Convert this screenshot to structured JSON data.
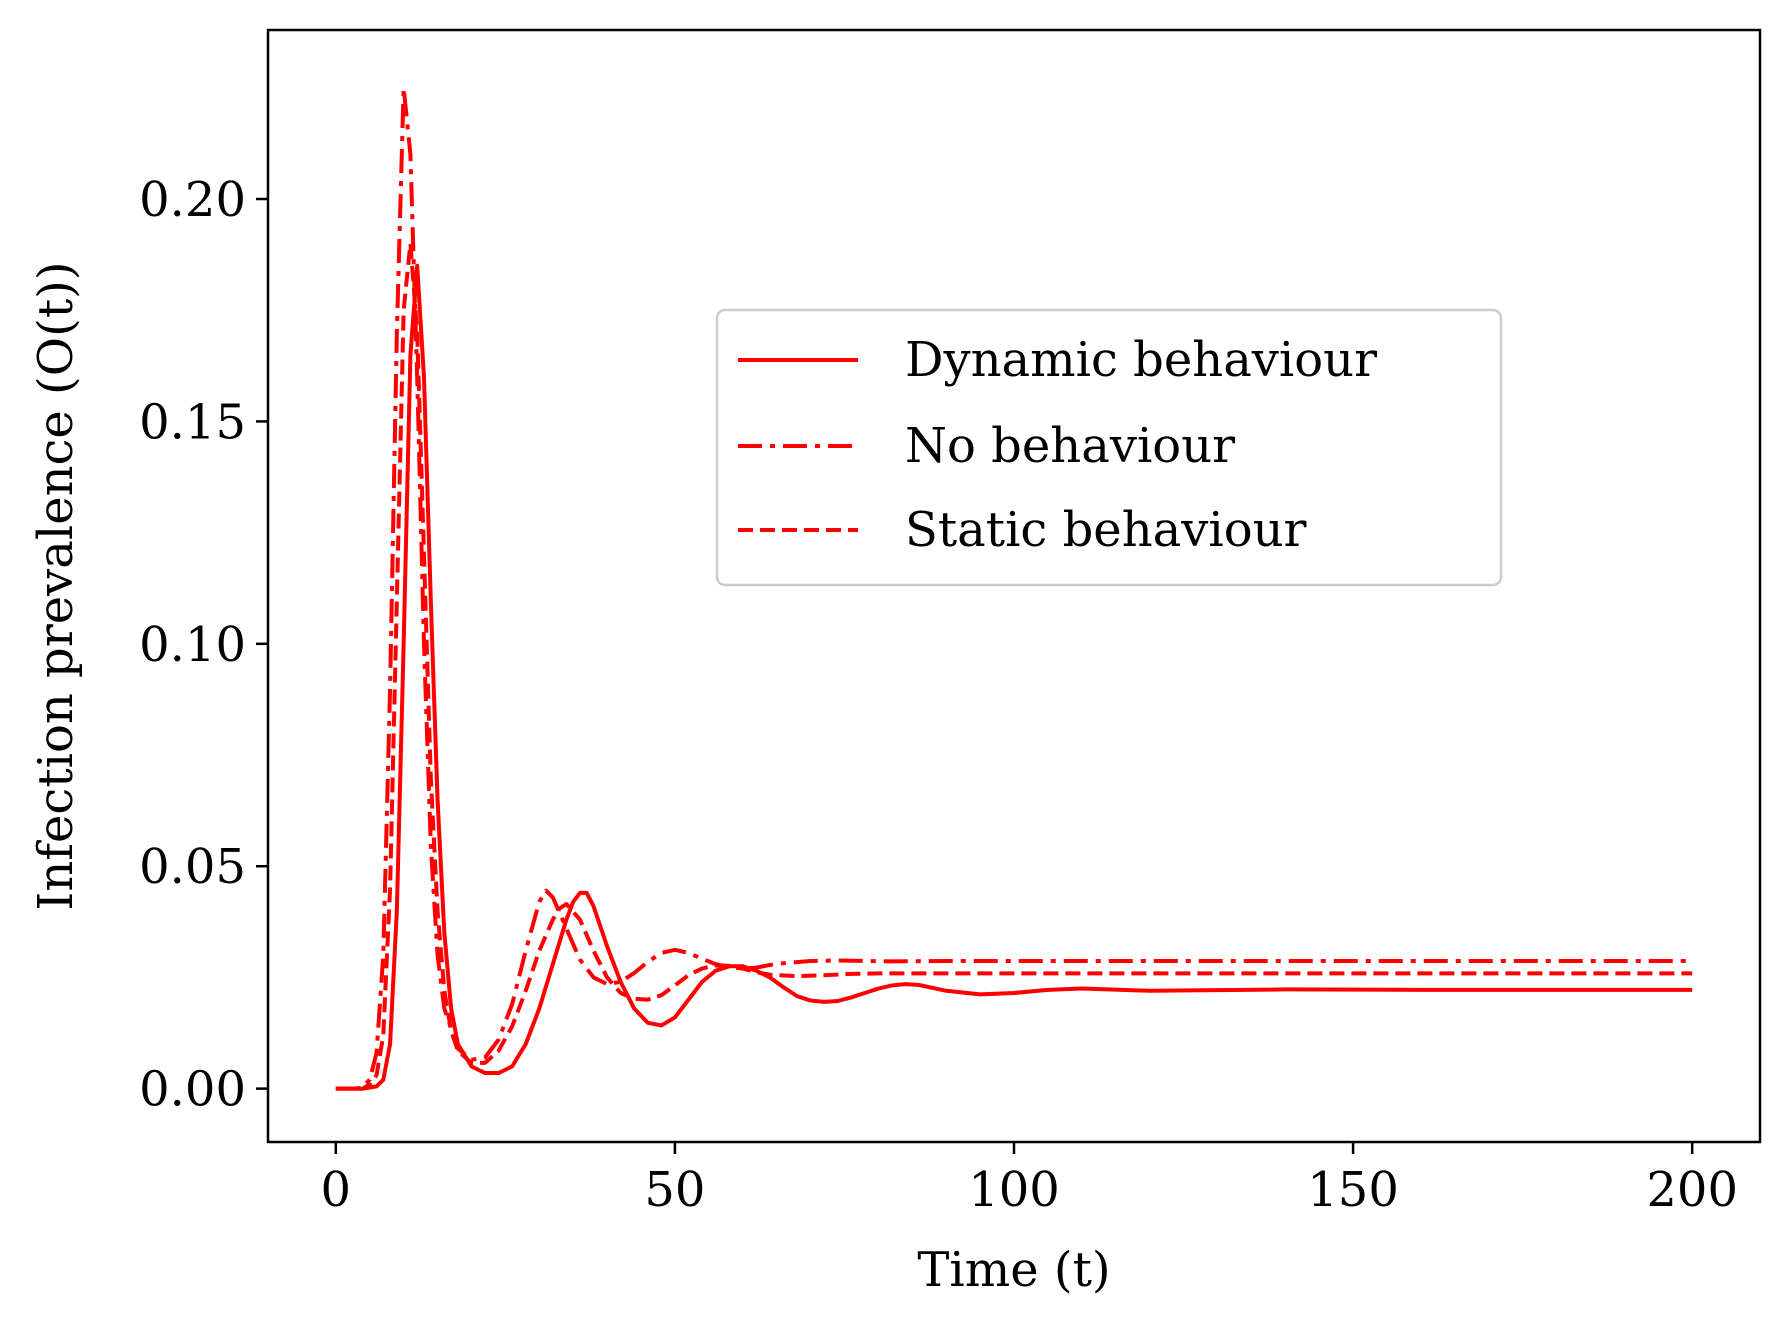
{
  "colors": {
    "series": "#ff0000",
    "axis": "#000000",
    "legend_border": "#cccccc",
    "background": "#ffffff"
  },
  "chart_data": {
    "type": "line",
    "title": "",
    "xlabel": "Time (t)",
    "ylabel": "Infection prevalence (O(t))",
    "xlim": [
      -10,
      210
    ],
    "ylim": [
      -0.012,
      0.238
    ],
    "grid": false,
    "legend_position": "center-right",
    "x_ticks": [
      0,
      50,
      100,
      150,
      200
    ],
    "x_tick_labels": [
      "0",
      "50",
      "100",
      "150",
      "200"
    ],
    "y_ticks": [
      0.0,
      0.05,
      0.1,
      0.15,
      0.2
    ],
    "y_tick_labels": [
      "0.00",
      "0.05",
      "0.10",
      "0.15",
      "0.20"
    ],
    "series": [
      {
        "name": "Dynamic behaviour",
        "style": "solid",
        "x": [
          0,
          4,
          6,
          7,
          8,
          9,
          10,
          11,
          12,
          13,
          14,
          15,
          16,
          17,
          18,
          20,
          22,
          24,
          26,
          28,
          30,
          32,
          34,
          35,
          36,
          37,
          38,
          40,
          42,
          44,
          46,
          48,
          50,
          52,
          54,
          56,
          58,
          60,
          62,
          64,
          66,
          68,
          70,
          72,
          74,
          76,
          78,
          80,
          82,
          84,
          86,
          90,
          95,
          100,
          105,
          110,
          120,
          140,
          160,
          180,
          200
        ],
        "y": [
          0.0,
          0.0,
          0.0005,
          0.002,
          0.01,
          0.04,
          0.1,
          0.165,
          0.185,
          0.16,
          0.11,
          0.065,
          0.035,
          0.018,
          0.01,
          0.005,
          0.0035,
          0.0035,
          0.005,
          0.01,
          0.018,
          0.028,
          0.038,
          0.042,
          0.044,
          0.044,
          0.041,
          0.032,
          0.024,
          0.018,
          0.0148,
          0.0142,
          0.016,
          0.02,
          0.024,
          0.0265,
          0.0275,
          0.0275,
          0.0265,
          0.025,
          0.0228,
          0.0208,
          0.0198,
          0.0195,
          0.0197,
          0.0205,
          0.0215,
          0.0225,
          0.0232,
          0.0235,
          0.0233,
          0.022,
          0.0212,
          0.0215,
          0.0222,
          0.0225,
          0.022,
          0.0223,
          0.0222,
          0.0222,
          0.0222
        ]
      },
      {
        "name": "No behaviour",
        "style": "dashdot",
        "x": [
          0,
          3,
          4,
          5,
          6,
          7,
          8,
          9,
          10,
          11,
          12,
          13,
          14,
          15,
          16,
          18,
          20,
          22,
          24,
          26,
          28,
          30,
          31,
          32,
          34,
          36,
          38,
          40,
          42,
          44,
          46,
          48,
          50,
          52,
          54,
          56,
          58,
          60,
          62,
          64,
          66,
          70,
          74,
          78,
          82,
          90,
          100,
          120,
          150,
          200
        ],
        "y": [
          0.0,
          0.0,
          0.0005,
          0.002,
          0.008,
          0.03,
          0.09,
          0.17,
          0.225,
          0.21,
          0.16,
          0.1,
          0.055,
          0.03,
          0.018,
          0.009,
          0.0065,
          0.007,
          0.011,
          0.019,
          0.031,
          0.042,
          0.0445,
          0.043,
          0.036,
          0.029,
          0.025,
          0.0235,
          0.024,
          0.026,
          0.0285,
          0.0305,
          0.0312,
          0.0305,
          0.0292,
          0.028,
          0.0273,
          0.027,
          0.0272,
          0.0278,
          0.0282,
          0.0287,
          0.0288,
          0.0287,
          0.0286,
          0.0287,
          0.0287,
          0.0287,
          0.0287,
          0.0287
        ]
      },
      {
        "name": "Static behaviour",
        "style": "dashed",
        "x": [
          0,
          4,
          5,
          6,
          7,
          8,
          9,
          10,
          11,
          12,
          13,
          14,
          15,
          16,
          17,
          18,
          20,
          22,
          24,
          26,
          28,
          30,
          32,
          33,
          34,
          36,
          38,
          40,
          42,
          44,
          46,
          48,
          50,
          52,
          54,
          56,
          58,
          60,
          62,
          64,
          68,
          72,
          76,
          80,
          90,
          100,
          120,
          150,
          200
        ],
        "y": [
          0.0,
          0.0,
          0.001,
          0.003,
          0.012,
          0.045,
          0.11,
          0.175,
          0.19,
          0.17,
          0.12,
          0.07,
          0.04,
          0.022,
          0.013,
          0.0085,
          0.0058,
          0.0058,
          0.0085,
          0.014,
          0.022,
          0.031,
          0.038,
          0.0405,
          0.0415,
          0.038,
          0.031,
          0.025,
          0.0215,
          0.0202,
          0.02,
          0.021,
          0.0232,
          0.0255,
          0.027,
          0.0277,
          0.0276,
          0.027,
          0.0262,
          0.0256,
          0.0253,
          0.0255,
          0.0258,
          0.0259,
          0.0259,
          0.0259,
          0.0259,
          0.0259,
          0.0259
        ]
      }
    ]
  }
}
